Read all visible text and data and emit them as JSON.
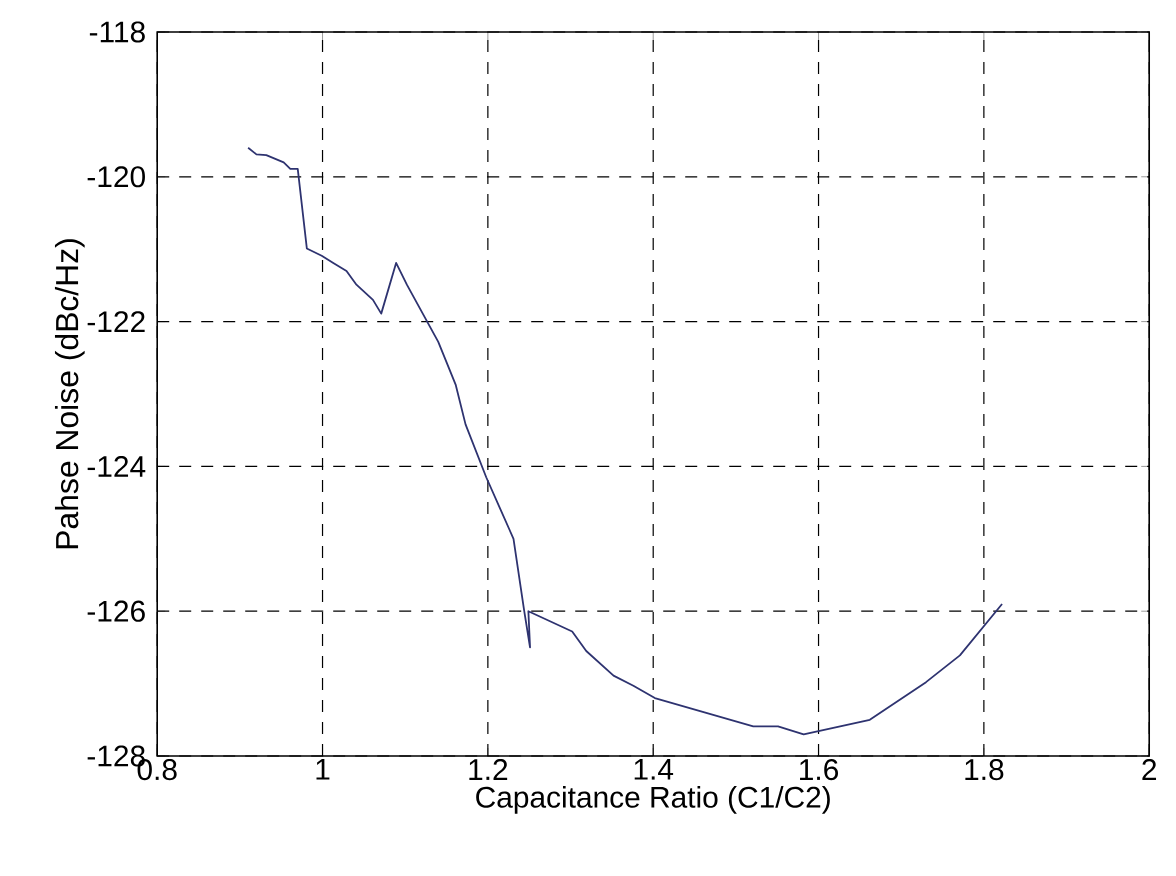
{
  "chart_data": {
    "type": "line",
    "xlabel": "Capacitance Ratio (C1/C2)",
    "ylabel": "Pahse Noise (dBc/Hz)",
    "xlim": [
      0.8,
      2
    ],
    "ylim": [
      -128,
      -118
    ],
    "xticks": [
      0.8,
      1,
      1.2,
      1.4,
      1.6,
      1.8,
      2
    ],
    "yticks": [
      -128,
      -126,
      -124,
      -122,
      -120,
      -118
    ],
    "grid": true,
    "line_style": "solid",
    "marker": "none",
    "series": [
      {
        "color": "#2e3370",
        "x": [
          0.91,
          0.92,
          0.932,
          0.953,
          0.961,
          0.97,
          0.981,
          0.999,
          1.013,
          1.029,
          1.041,
          1.061,
          1.071,
          1.089,
          1.102,
          1.14,
          1.161,
          1.173,
          1.198,
          1.231,
          1.244,
          1.251,
          1.249,
          1.302,
          1.319,
          1.352,
          1.376,
          1.402,
          1.521,
          1.551,
          1.582,
          1.662,
          1.73,
          1.771,
          1.822
        ],
        "values": [
          -119.6,
          -119.69,
          -119.7,
          -119.8,
          -119.89,
          -119.89,
          -120.99,
          -121.09,
          -121.19,
          -121.3,
          -121.49,
          -121.7,
          -121.89,
          -121.19,
          -121.49,
          -122.28,
          -122.87,
          -123.42,
          -124.15,
          -125.0,
          -126.0,
          -126.5,
          -126.0,
          -126.28,
          -126.55,
          -126.89,
          -127.03,
          -127.2,
          -127.59,
          -127.59,
          -127.7,
          -127.5,
          -126.98,
          -126.61,
          -125.9
        ]
      }
    ]
  }
}
